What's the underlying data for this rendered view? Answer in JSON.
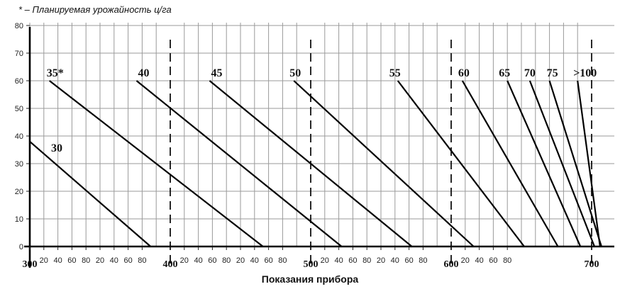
{
  "chart_data": {
    "type": "line",
    "footnote": "* – Планируемая урожайность ц/га",
    "xlabel": "Показания прибора",
    "ylabel": "",
    "x_range": [
      300,
      710
    ],
    "ylim": [
      0,
      80
    ],
    "y_ticks": [
      0,
      10,
      20,
      30,
      40,
      50,
      60,
      70,
      80
    ],
    "x_ticks": [
      {
        "x": 300,
        "label": "300",
        "major": true
      },
      {
        "x": 310,
        "label": "20"
      },
      {
        "x": 320,
        "label": "40"
      },
      {
        "x": 330,
        "label": "60"
      },
      {
        "x": 340,
        "label": "80"
      },
      {
        "x": 350,
        "label": "20"
      },
      {
        "x": 360,
        "label": "40"
      },
      {
        "x": 370,
        "label": "60"
      },
      {
        "x": 380,
        "label": "80"
      },
      {
        "x": 400,
        "label": "400",
        "major": true
      },
      {
        "x": 410,
        "label": "20"
      },
      {
        "x": 420,
        "label": "40"
      },
      {
        "x": 430,
        "label": "60"
      },
      {
        "x": 440,
        "label": "80"
      },
      {
        "x": 450,
        "label": "20"
      },
      {
        "x": 460,
        "label": "40"
      },
      {
        "x": 470,
        "label": "60"
      },
      {
        "x": 480,
        "label": "80"
      },
      {
        "x": 500,
        "label": "500",
        "major": true
      },
      {
        "x": 510,
        "label": "20"
      },
      {
        "x": 520,
        "label": "40"
      },
      {
        "x": 530,
        "label": "60"
      },
      {
        "x": 540,
        "label": "80"
      },
      {
        "x": 550,
        "label": "20"
      },
      {
        "x": 560,
        "label": "40"
      },
      {
        "x": 570,
        "label": "60"
      },
      {
        "x": 580,
        "label": "80"
      },
      {
        "x": 600,
        "label": "600",
        "major": true
      },
      {
        "x": 610,
        "label": "20"
      },
      {
        "x": 620,
        "label": "40"
      },
      {
        "x": 630,
        "label": "60"
      },
      {
        "x": 640,
        "label": "80"
      },
      {
        "x": 700,
        "label": "700",
        "major": true
      }
    ],
    "grid_x": [
      300,
      310,
      320,
      330,
      340,
      350,
      360,
      370,
      380,
      390,
      400,
      410,
      420,
      430,
      440,
      450,
      460,
      470,
      480,
      490,
      500,
      510,
      520,
      530,
      540,
      550,
      560,
      570,
      580,
      590,
      600,
      610,
      620,
      630,
      640,
      650,
      660,
      670,
      680,
      690,
      700
    ],
    "dashed_x": [
      400,
      500,
      600,
      700
    ],
    "series": [
      {
        "name": "30",
        "points": [
          [
            300,
            38
          ],
          [
            386,
            0
          ]
        ]
      },
      {
        "name": "35*",
        "points": [
          [
            314,
            60
          ],
          [
            466,
            0
          ]
        ]
      },
      {
        "name": "40",
        "points": [
          [
            376,
            60
          ],
          [
            522,
            0
          ]
        ]
      },
      {
        "name": "45",
        "points": [
          [
            428,
            60
          ],
          [
            572,
            0
          ]
        ]
      },
      {
        "name": "50",
        "points": [
          [
            488,
            60
          ],
          [
            616,
            0
          ]
        ]
      },
      {
        "name": "55",
        "points": [
          [
            562,
            60
          ],
          [
            652,
            0
          ]
        ]
      },
      {
        "name": "60",
        "points": [
          [
            608,
            60
          ],
          [
            676,
            0
          ]
        ]
      },
      {
        "name": "65",
        "points": [
          [
            640,
            60
          ],
          [
            692,
            0
          ]
        ]
      },
      {
        "name": "70",
        "points": [
          [
            656,
            60
          ],
          [
            702,
            0
          ]
        ]
      },
      {
        "name": "75",
        "points": [
          [
            670,
            60
          ],
          [
            707,
            0
          ]
        ]
      },
      {
        "name": ">100",
        "points": [
          [
            690,
            60
          ],
          [
            706,
            0
          ]
        ]
      }
    ]
  }
}
